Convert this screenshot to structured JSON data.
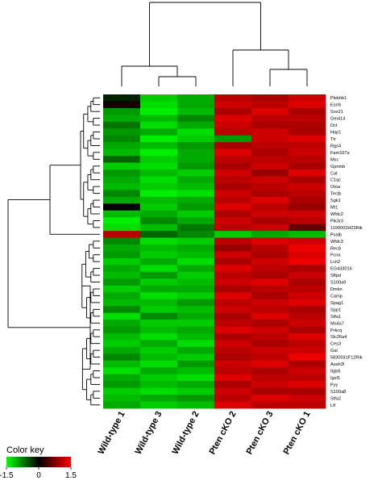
{
  "chart_data": {
    "type": "heatmap",
    "title": "",
    "columns": [
      "Wild-type 1",
      "Wild-type 3",
      "Wild-type 2",
      "Pten cKO 2",
      "Pten cKO 3",
      "Pten cKO 1"
    ],
    "rows": [
      "Plekhb1",
      "Esrrb",
      "Sox21",
      "Gm414",
      "Dct",
      "Hap1",
      "Ttr",
      "Rgs4",
      "Fam107a",
      "Msc",
      "Gpnmb",
      "Cat",
      "C1qc",
      "Otoa",
      "Tectb",
      "Sgk1",
      "Mt1",
      "Wfdc2",
      "Pik3r3",
      "1190002H23Rik",
      "Pvalb",
      "Wfdc3",
      "Rec8",
      "Fcna",
      "Lcn2",
      "EG433016",
      "Sftpd",
      "S100a9",
      "Dmkn",
      "Camp",
      "Spag1",
      "Spp1",
      "Stfa1",
      "Ms4a7",
      "Prkcq",
      "Slc26a4",
      "Ces3",
      "Gal",
      "5830031F12Rik",
      "Asah3l",
      "Itgb6",
      "Igsf1",
      "Pyy",
      "S100a8",
      "Stfa2",
      "Ltf"
    ],
    "values": [
      [
        -0.2,
        -1.2,
        -1.0,
        1.1,
        1.0,
        1.2
      ],
      [
        0.1,
        -1.3,
        -1.0,
        1.2,
        1.1,
        1.3
      ],
      [
        -0.9,
        -1.4,
        -1.1,
        1.0,
        1.3,
        1.0
      ],
      [
        -1.0,
        -1.1,
        -0.8,
        1.3,
        1.1,
        1.1
      ],
      [
        -0.7,
        -1.3,
        -1.0,
        1.2,
        1.0,
        1.0
      ],
      [
        -0.9,
        -1.0,
        -1.3,
        1.1,
        1.2,
        1.0
      ],
      [
        -0.8,
        -1.4,
        -1.2,
        -0.9,
        1.2,
        1.3
      ],
      [
        -1.0,
        -1.1,
        -0.9,
        1.0,
        1.1,
        1.1
      ],
      [
        -1.1,
        -1.4,
        -1.0,
        1.3,
        1.0,
        1.2
      ],
      [
        -0.6,
        -1.2,
        -1.0,
        1.1,
        1.1,
        1.1
      ],
      [
        -1.2,
        -1.3,
        -0.9,
        1.0,
        1.2,
        1.0
      ],
      [
        -0.9,
        -1.1,
        -1.2,
        1.2,
        0.9,
        1.3
      ],
      [
        -1.0,
        -1.3,
        -1.0,
        1.1,
        1.2,
        1.0
      ],
      [
        -1.1,
        -1.2,
        -1.1,
        1.0,
        1.1,
        1.2
      ],
      [
        -0.8,
        -1.4,
        -1.3,
        1.2,
        1.0,
        1.1
      ],
      [
        -1.0,
        -1.1,
        -1.0,
        1.1,
        1.3,
        1.0
      ],
      [
        0.0,
        -1.2,
        -0.9,
        1.3,
        1.1,
        0.9
      ],
      [
        -1.1,
        -1.0,
        -1.2,
        1.0,
        1.2,
        1.2
      ],
      [
        -1.4,
        -0.8,
        -1.0,
        1.2,
        1.0,
        1.1
      ],
      [
        -1.3,
        -1.1,
        -0.7,
        1.1,
        1.2,
        0.6
      ],
      [
        1.1,
        -0.6,
        -0.8,
        -1.2,
        -1.0,
        -1.1
      ],
      [
        -0.8,
        -1.3,
        -1.2,
        1.1,
        1.3,
        1.2
      ],
      [
        -1.0,
        -1.1,
        -1.0,
        0.9,
        1.1,
        1.4
      ],
      [
        -0.9,
        -1.2,
        -1.1,
        1.2,
        1.0,
        1.3
      ],
      [
        -1.2,
        -1.0,
        -1.3,
        1.0,
        1.2,
        1.4
      ],
      [
        -1.0,
        -1.3,
        -1.0,
        1.3,
        1.1,
        1.0
      ],
      [
        -1.1,
        -0.9,
        -1.2,
        1.1,
        1.0,
        1.2
      ],
      [
        -0.9,
        -1.2,
        -1.1,
        1.2,
        1.3,
        1.0
      ],
      [
        -1.2,
        -1.0,
        -1.0,
        1.0,
        1.1,
        1.1
      ],
      [
        -1.0,
        -1.3,
        -1.2,
        1.3,
        1.0,
        1.2
      ],
      [
        -1.1,
        -1.1,
        -0.9,
        1.1,
        1.2,
        1.3
      ],
      [
        -0.8,
        -1.2,
        -1.1,
        1.2,
        1.1,
        1.0
      ],
      [
        -1.3,
        -0.8,
        -1.0,
        1.0,
        1.3,
        1.1
      ],
      [
        -1.0,
        -1.2,
        -1.2,
        1.1,
        1.0,
        1.2
      ],
      [
        -0.9,
        -1.1,
        -1.0,
        1.3,
        1.2,
        1.0
      ],
      [
        -1.1,
        -1.3,
        -1.1,
        1.0,
        1.1,
        1.3
      ],
      [
        -1.2,
        -1.0,
        -1.3,
        1.2,
        1.0,
        1.1
      ],
      [
        -1.0,
        -1.2,
        -1.0,
        1.1,
        1.2,
        1.2
      ],
      [
        -0.8,
        -1.1,
        -1.2,
        1.0,
        1.1,
        1.4
      ],
      [
        -1.1,
        -1.3,
        -0.9,
        1.2,
        1.3,
        1.0
      ],
      [
        -1.3,
        -1.0,
        -1.1,
        1.1,
        1.0,
        1.2
      ],
      [
        -1.0,
        -1.2,
        -1.3,
        1.3,
        1.1,
        1.1
      ],
      [
        -0.9,
        -1.1,
        -1.0,
        1.0,
        1.2,
        1.3
      ],
      [
        -1.2,
        -1.3,
        -1.2,
        1.2,
        1.0,
        1.0
      ],
      [
        -1.1,
        -1.0,
        -0.9,
        1.1,
        1.3,
        1.2
      ],
      [
        -1.0,
        -1.2,
        -1.1,
        1.3,
        1.1,
        1.1
      ]
    ],
    "color_key": {
      "title": "Color key",
      "min": -1.5,
      "max": 1.5,
      "ticks": [
        -1.5,
        0,
        1.5
      ],
      "tick_labels": [
        "-1.5",
        "0",
        "1.5"
      ],
      "low_color": "#00ff00",
      "mid_color": "#000000",
      "high_color": "#ff0000"
    },
    "column_dendrogram": true,
    "row_dendrogram": true
  }
}
